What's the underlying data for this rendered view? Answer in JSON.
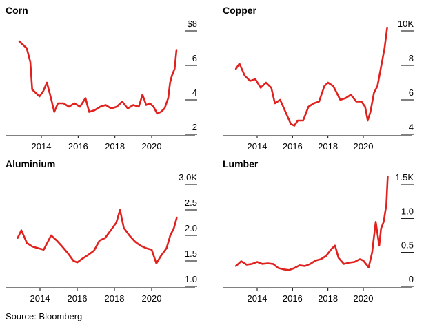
{
  "source": "Source: Bloomberg",
  "colors": {
    "line": "#e0211d",
    "axis": "#000000",
    "tick": "#000000"
  },
  "chart_data": [
    {
      "type": "line",
      "title": "Corn",
      "xlabel": "",
      "ylabel": "",
      "xlim": [
        2012.5,
        2022.2
      ],
      "ylim": [
        2,
        8
      ],
      "yticks": [
        8,
        6,
        4,
        2
      ],
      "ytick_labels": [
        "$8",
        "6",
        "4",
        "2"
      ],
      "xticks": [
        2014,
        2016,
        2018,
        2020
      ],
      "xtick_labels": [
        "2014",
        "2016",
        "2018",
        "2020"
      ],
      "grid": false,
      "series": [
        {
          "values": [
            [
              2012.8,
              7.4
            ],
            [
              2013.0,
              7.2
            ],
            [
              2013.2,
              7.0
            ],
            [
              2013.4,
              6.2
            ],
            [
              2013.5,
              4.6
            ],
            [
              2013.7,
              4.4
            ],
            [
              2013.9,
              4.2
            ],
            [
              2014.1,
              4.5
            ],
            [
              2014.3,
              5.0
            ],
            [
              2014.5,
              4.2
            ],
            [
              2014.7,
              3.3
            ],
            [
              2014.9,
              3.8
            ],
            [
              2015.2,
              3.8
            ],
            [
              2015.5,
              3.6
            ],
            [
              2015.8,
              3.8
            ],
            [
              2016.1,
              3.6
            ],
            [
              2016.4,
              4.1
            ],
            [
              2016.6,
              3.3
            ],
            [
              2016.9,
              3.4
            ],
            [
              2017.2,
              3.6
            ],
            [
              2017.5,
              3.7
            ],
            [
              2017.8,
              3.5
            ],
            [
              2018.1,
              3.6
            ],
            [
              2018.4,
              3.9
            ],
            [
              2018.7,
              3.5
            ],
            [
              2019.0,
              3.7
            ],
            [
              2019.3,
              3.6
            ],
            [
              2019.5,
              4.3
            ],
            [
              2019.7,
              3.7
            ],
            [
              2019.9,
              3.8
            ],
            [
              2020.1,
              3.6
            ],
            [
              2020.3,
              3.2
            ],
            [
              2020.5,
              3.3
            ],
            [
              2020.7,
              3.5
            ],
            [
              2020.9,
              4.1
            ],
            [
              2021.0,
              5.0
            ],
            [
              2021.1,
              5.4
            ],
            [
              2021.25,
              5.8
            ],
            [
              2021.35,
              6.9
            ]
          ]
        }
      ]
    },
    {
      "type": "line",
      "title": "Copper",
      "xlabel": "",
      "ylabel": "",
      "xlim": [
        2012.5,
        2022.2
      ],
      "ylim": [
        4,
        10
      ],
      "yticks": [
        10,
        8,
        6,
        4
      ],
      "ytick_labels": [
        "10K",
        "8",
        "6",
        "4"
      ],
      "xticks": [
        2014,
        2016,
        2018,
        2020
      ],
      "xtick_labels": [
        "2014",
        "2016",
        "2018",
        "2020"
      ],
      "grid": false,
      "series": [
        {
          "values": [
            [
              2012.8,
              7.8
            ],
            [
              2013.0,
              8.1
            ],
            [
              2013.3,
              7.4
            ],
            [
              2013.6,
              7.1
            ],
            [
              2013.9,
              7.2
            ],
            [
              2014.2,
              6.7
            ],
            [
              2014.5,
              7.0
            ],
            [
              2014.8,
              6.7
            ],
            [
              2015.0,
              5.8
            ],
            [
              2015.3,
              6.0
            ],
            [
              2015.6,
              5.3
            ],
            [
              2015.9,
              4.6
            ],
            [
              2016.1,
              4.5
            ],
            [
              2016.3,
              4.8
            ],
            [
              2016.6,
              4.8
            ],
            [
              2016.9,
              5.6
            ],
            [
              2017.2,
              5.8
            ],
            [
              2017.5,
              5.9
            ],
            [
              2017.8,
              6.8
            ],
            [
              2018.0,
              7.0
            ],
            [
              2018.3,
              6.8
            ],
            [
              2018.5,
              6.4
            ],
            [
              2018.7,
              6.0
            ],
            [
              2019.0,
              6.1
            ],
            [
              2019.3,
              6.3
            ],
            [
              2019.6,
              5.9
            ],
            [
              2019.9,
              5.9
            ],
            [
              2020.1,
              5.6
            ],
            [
              2020.25,
              4.8
            ],
            [
              2020.4,
              5.3
            ],
            [
              2020.6,
              6.4
            ],
            [
              2020.8,
              6.8
            ],
            [
              2021.0,
              7.9
            ],
            [
              2021.2,
              9.0
            ],
            [
              2021.35,
              10.2
            ]
          ]
        }
      ]
    },
    {
      "type": "line",
      "title": "Aluminium",
      "xlabel": "",
      "ylabel": "",
      "xlim": [
        2012.5,
        2022.2
      ],
      "ylim": [
        1.0,
        3.0
      ],
      "yticks": [
        3.0,
        2.5,
        2.0,
        1.5,
        1.0
      ],
      "ytick_labels": [
        "3.0K",
        "2.5",
        "2.0",
        "1.5",
        "1.0"
      ],
      "xticks": [
        2014,
        2016,
        2018,
        2020
      ],
      "xtick_labels": [
        "2014",
        "2016",
        "2018",
        "2020"
      ],
      "grid": false,
      "series": [
        {
          "values": [
            [
              2012.8,
              1.95
            ],
            [
              2013.0,
              2.1
            ],
            [
              2013.3,
              1.85
            ],
            [
              2013.6,
              1.78
            ],
            [
              2013.9,
              1.75
            ],
            [
              2014.2,
              1.72
            ],
            [
              2014.6,
              2.0
            ],
            [
              2014.9,
              1.9
            ],
            [
              2015.2,
              1.78
            ],
            [
              2015.5,
              1.65
            ],
            [
              2015.8,
              1.5
            ],
            [
              2016.0,
              1.47
            ],
            [
              2016.3,
              1.55
            ],
            [
              2016.6,
              1.62
            ],
            [
              2016.9,
              1.7
            ],
            [
              2017.2,
              1.9
            ],
            [
              2017.5,
              1.95
            ],
            [
              2017.8,
              2.1
            ],
            [
              2018.1,
              2.25
            ],
            [
              2018.3,
              2.5
            ],
            [
              2018.5,
              2.15
            ],
            [
              2018.8,
              2.0
            ],
            [
              2019.1,
              1.88
            ],
            [
              2019.4,
              1.8
            ],
            [
              2019.7,
              1.75
            ],
            [
              2020.0,
              1.72
            ],
            [
              2020.25,
              1.45
            ],
            [
              2020.5,
              1.6
            ],
            [
              2020.8,
              1.75
            ],
            [
              2021.0,
              2.0
            ],
            [
              2021.2,
              2.15
            ],
            [
              2021.35,
              2.35
            ]
          ]
        }
      ]
    },
    {
      "type": "line",
      "title": "Lumber",
      "xlabel": "",
      "ylabel": "",
      "xlim": [
        2012.5,
        2022.2
      ],
      "ylim": [
        0,
        1.5
      ],
      "yticks": [
        1.5,
        1.0,
        0.5,
        0
      ],
      "ytick_labels": [
        "1.5K",
        "1.0",
        "0.5",
        "0"
      ],
      "xticks": [
        2014,
        2016,
        2018,
        2020
      ],
      "xtick_labels": [
        "2014",
        "2016",
        "2018",
        "2020"
      ],
      "grid": false,
      "series": [
        {
          "values": [
            [
              2012.8,
              0.3
            ],
            [
              2013.1,
              0.37
            ],
            [
              2013.4,
              0.32
            ],
            [
              2013.7,
              0.33
            ],
            [
              2014.0,
              0.36
            ],
            [
              2014.3,
              0.33
            ],
            [
              2014.6,
              0.34
            ],
            [
              2014.9,
              0.33
            ],
            [
              2015.2,
              0.27
            ],
            [
              2015.5,
              0.25
            ],
            [
              2015.8,
              0.24
            ],
            [
              2016.1,
              0.27
            ],
            [
              2016.4,
              0.31
            ],
            [
              2016.7,
              0.3
            ],
            [
              2017.0,
              0.33
            ],
            [
              2017.3,
              0.38
            ],
            [
              2017.6,
              0.4
            ],
            [
              2017.9,
              0.45
            ],
            [
              2018.2,
              0.55
            ],
            [
              2018.4,
              0.6
            ],
            [
              2018.6,
              0.42
            ],
            [
              2018.9,
              0.33
            ],
            [
              2019.2,
              0.35
            ],
            [
              2019.5,
              0.36
            ],
            [
              2019.8,
              0.4
            ],
            [
              2020.0,
              0.38
            ],
            [
              2020.3,
              0.28
            ],
            [
              2020.5,
              0.5
            ],
            [
              2020.7,
              0.95
            ],
            [
              2020.9,
              0.6
            ],
            [
              2021.0,
              0.85
            ],
            [
              2021.15,
              0.95
            ],
            [
              2021.3,
              1.2
            ],
            [
              2021.38,
              1.62
            ]
          ]
        }
      ]
    }
  ]
}
